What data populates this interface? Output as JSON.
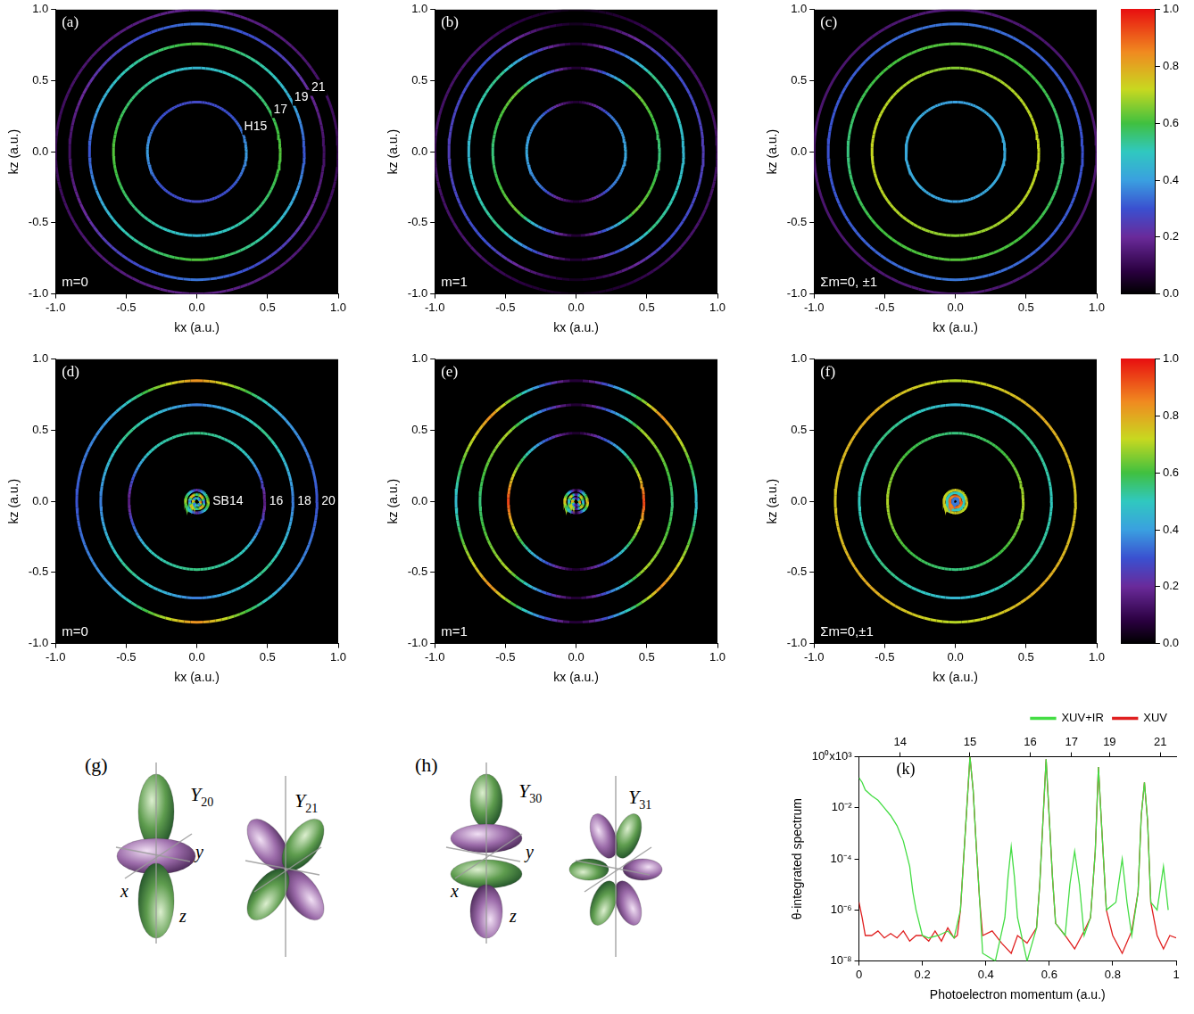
{
  "chart_data": [
    {
      "type": "ring_map",
      "panel": "(a)",
      "annotation": "m=0",
      "xlabel": "kx (a.u.)",
      "ylabel": "kz (a.u.)",
      "xlim": [
        -1,
        1
      ],
      "ylim": [
        -1,
        1
      ],
      "xticks": [
        {
          "value": -1,
          "label": "-1.0"
        },
        -0.5,
        {
          "value": 0,
          "label": "0.0"
        },
        0.5,
        {
          "value": 1,
          "label": "1.0"
        }
      ],
      "yticks": [
        {
          "value": -1,
          "label": "-1.0"
        },
        -0.5,
        {
          "value": 0,
          "label": "0.0"
        },
        0.5,
        {
          "value": 1,
          "label": "1.0"
        }
      ],
      "grid": false,
      "rings": [
        {
          "label": "H15",
          "radius": 0.35,
          "intensity": [
            0.4,
            0.3,
            0.28,
            0.3,
            0.4,
            0.3,
            0.28,
            0.3
          ]
        },
        {
          "label": "17",
          "radius": 0.59,
          "intensity": [
            0.62,
            0.55,
            0.45,
            0.55,
            0.62,
            0.55,
            0.45,
            0.55
          ]
        },
        {
          "label": "19",
          "radius": 0.76,
          "intensity": [
            0.3,
            0.5,
            0.62,
            0.5,
            0.3,
            0.5,
            0.62,
            0.5
          ]
        },
        {
          "label": "21",
          "radius": 0.9,
          "intensity": [
            0.12,
            0.25,
            0.35,
            0.25,
            0.12,
            0.25,
            0.35,
            0.25
          ]
        },
        {
          "radius": 1.0,
          "intensity": [
            0.1,
            0.15,
            0.18,
            0.15,
            0.1,
            0.15,
            0.18,
            0.15
          ]
        }
      ]
    },
    {
      "type": "ring_map",
      "panel": "(b)",
      "annotation": "m=1",
      "xlabel": "kx (a.u.)",
      "ylabel": "kz (a.u.)",
      "xlim": [
        -1,
        1
      ],
      "ylim": [
        -1,
        1
      ],
      "xticks": [
        {
          "value": -1,
          "label": "-1.0"
        },
        -0.5,
        {
          "value": 0,
          "label": "0.0"
        },
        0.5,
        {
          "value": 1,
          "label": "1.0"
        }
      ],
      "yticks": [
        {
          "value": -1,
          "label": "-1.0"
        },
        -0.5,
        {
          "value": 0,
          "label": "0.0"
        },
        0.5,
        {
          "value": 1,
          "label": "1.0"
        }
      ],
      "grid": false,
      "rings": [
        {
          "radius": 0.35,
          "intensity": [
            0.42,
            0.35,
            0.05,
            0.35,
            0.42,
            0.35,
            0.05,
            0.35
          ]
        },
        {
          "radius": 0.59,
          "intensity": [
            0.55,
            0.65,
            0.04,
            0.65,
            0.55,
            0.65,
            0.04,
            0.65
          ]
        },
        {
          "radius": 0.76,
          "intensity": [
            0.45,
            0.55,
            0.04,
            0.55,
            0.45,
            0.55,
            0.04,
            0.55
          ]
        },
        {
          "radius": 0.9,
          "intensity": [
            0.25,
            0.3,
            0.03,
            0.3,
            0.25,
            0.3,
            0.03,
            0.3
          ]
        },
        {
          "radius": 1.0,
          "intensity": [
            0.12,
            0.14,
            0.02,
            0.14,
            0.12,
            0.14,
            0.02,
            0.14
          ]
        }
      ]
    },
    {
      "type": "ring_map",
      "panel": "(c)",
      "annotation": "Σm=0, ±1",
      "xlabel": "kx (a.u.)",
      "ylabel": "kz (a.u.)",
      "xlim": [
        -1,
        1
      ],
      "ylim": [
        -1,
        1
      ],
      "xticks": [
        {
          "value": -1,
          "label": "-1.0"
        },
        -0.5,
        {
          "value": 0,
          "label": "0.0"
        },
        0.5,
        {
          "value": 1,
          "label": "1.0"
        }
      ],
      "yticks": [
        {
          "value": -1,
          "label": "-1.0"
        },
        -0.5,
        {
          "value": 0,
          "label": "0.0"
        },
        0.5,
        {
          "value": 1,
          "label": "1.0"
        }
      ],
      "grid": false,
      "rings": [
        {
          "radius": 0.35,
          "intensity": [
            0.42,
            0.42,
            0.4,
            0.42,
            0.42,
            0.42,
            0.4,
            0.42
          ]
        },
        {
          "radius": 0.59,
          "intensity": [
            0.72,
            0.7,
            0.66,
            0.7,
            0.72,
            0.7,
            0.66,
            0.7
          ]
        },
        {
          "radius": 0.76,
          "intensity": [
            0.55,
            0.6,
            0.62,
            0.6,
            0.55,
            0.6,
            0.62,
            0.6
          ]
        },
        {
          "radius": 0.9,
          "intensity": [
            0.3,
            0.32,
            0.35,
            0.32,
            0.3,
            0.32,
            0.35,
            0.32
          ]
        },
        {
          "radius": 1.0,
          "intensity": [
            0.14,
            0.14,
            0.15,
            0.14,
            0.14,
            0.14,
            0.15,
            0.14
          ]
        }
      ]
    },
    {
      "type": "ring_map",
      "panel": "(d)",
      "annotation": "m=0",
      "xlabel": "kx (a.u.)",
      "ylabel": "kz (a.u.)",
      "xlim": [
        -1,
        1
      ],
      "ylim": [
        -1,
        1
      ],
      "xticks": [
        {
          "value": -1,
          "label": "-1.0"
        },
        -0.5,
        {
          "value": 0,
          "label": "0.0"
        },
        0.5,
        {
          "value": 1,
          "label": "1.0"
        }
      ],
      "yticks": [
        {
          "value": -1,
          "label": "-1.0"
        },
        -0.5,
        {
          "value": 0,
          "label": "0.0"
        },
        0.5,
        {
          "value": 1,
          "label": "1.0"
        }
      ],
      "grid": false,
      "rings": [
        {
          "radius": 0.025,
          "intensity": [
            0.9,
            0.3,
            0.6,
            0.3,
            0.9,
            0.3,
            0.6,
            0.3
          ]
        },
        {
          "radius": 0.05,
          "intensity": [
            0.3,
            0.85,
            0.5,
            0.85,
            0.3,
            0.85,
            0.5,
            0.85
          ]
        },
        {
          "label": "SB14",
          "radius": 0.08,
          "intensity": [
            0.7,
            0.5,
            0.2,
            0.5,
            0.7,
            0.5,
            0.2,
            0.5
          ]
        },
        {
          "label": "16",
          "radius": 0.48,
          "intensity": [
            0.15,
            0.5,
            0.55,
            0.5,
            0.15,
            0.5,
            0.55,
            0.5
          ]
        },
        {
          "label": "18",
          "radius": 0.68,
          "intensity": [
            0.35,
            0.55,
            0.35,
            0.55,
            0.35,
            0.55,
            0.35,
            0.55
          ]
        },
        {
          "label": "20",
          "radius": 0.85,
          "intensity": [
            0.3,
            0.4,
            0.85,
            0.4,
            0.3,
            0.4,
            0.85,
            0.4
          ]
        }
      ]
    },
    {
      "type": "ring_map",
      "panel": "(e)",
      "annotation": "m=1",
      "xlabel": "kx (a.u.)",
      "ylabel": "kz (a.u.)",
      "xlim": [
        -1,
        1
      ],
      "ylim": [
        -1,
        1
      ],
      "xticks": [
        {
          "value": -1,
          "label": "-1.0"
        },
        -0.5,
        {
          "value": 0,
          "label": "0.0"
        },
        0.5,
        {
          "value": 1,
          "label": "1.0"
        }
      ],
      "yticks": [
        {
          "value": -1,
          "label": "-1.0"
        },
        -0.5,
        {
          "value": 0,
          "label": "0.0"
        },
        0.5,
        {
          "value": 1,
          "label": "1.0"
        }
      ],
      "grid": false,
      "rings": [
        {
          "radius": 0.025,
          "intensity": [
            0.9,
            0.4,
            0.1,
            0.4,
            0.9,
            0.4,
            0.1,
            0.4
          ]
        },
        {
          "radius": 0.05,
          "intensity": [
            0.4,
            0.8,
            0.1,
            0.8,
            0.4,
            0.8,
            0.1,
            0.8
          ]
        },
        {
          "radius": 0.08,
          "intensity": [
            0.8,
            0.5,
            0.05,
            0.5,
            0.8,
            0.5,
            0.05,
            0.5
          ]
        },
        {
          "radius": 0.48,
          "intensity": [
            0.95,
            0.5,
            0.04,
            0.5,
            0.95,
            0.5,
            0.04,
            0.5
          ]
        },
        {
          "radius": 0.68,
          "intensity": [
            0.55,
            0.7,
            0.04,
            0.7,
            0.55,
            0.7,
            0.04,
            0.7
          ]
        },
        {
          "radius": 0.85,
          "intensity": [
            0.45,
            0.85,
            0.04,
            0.85,
            0.45,
            0.85,
            0.04,
            0.85
          ]
        }
      ]
    },
    {
      "type": "ring_map",
      "panel": "(f)",
      "annotation": "Σm=0,±1",
      "xlabel": "kx (a.u.)",
      "ylabel": "kz (a.u.)",
      "xlim": [
        -1,
        1
      ],
      "ylim": [
        -1,
        1
      ],
      "xticks": [
        {
          "value": -1,
          "label": "-1.0"
        },
        -0.5,
        {
          "value": 0,
          "label": "0.0"
        },
        0.5,
        {
          "value": 1,
          "label": "1.0"
        }
      ],
      "yticks": [
        {
          "value": -1,
          "label": "-1.0"
        },
        -0.5,
        {
          "value": 0,
          "label": "0.0"
        },
        0.5,
        {
          "value": 1,
          "label": "1.0"
        }
      ],
      "grid": false,
      "rings": [
        {
          "radius": 0.02,
          "intensity": [
            0.35,
            0.35,
            0.35,
            0.35,
            0.35,
            0.35,
            0.35,
            0.35
          ]
        },
        {
          "radius": 0.04,
          "intensity": [
            0.9,
            0.85,
            0.9,
            0.85,
            0.9,
            0.85,
            0.9,
            0.85
          ]
        },
        {
          "radius": 0.06,
          "intensity": [
            0.5,
            0.5,
            0.5,
            0.5,
            0.5,
            0.5,
            0.5,
            0.5
          ]
        },
        {
          "radius": 0.08,
          "intensity": [
            0.75,
            0.7,
            0.75,
            0.7,
            0.75,
            0.7,
            0.75,
            0.7
          ]
        },
        {
          "radius": 0.48,
          "intensity": [
            0.7,
            0.6,
            0.55,
            0.6,
            0.7,
            0.6,
            0.55,
            0.6
          ]
        },
        {
          "radius": 0.68,
          "intensity": [
            0.5,
            0.55,
            0.45,
            0.55,
            0.5,
            0.55,
            0.45,
            0.55
          ]
        },
        {
          "radius": 0.85,
          "intensity": [
            0.75,
            0.8,
            0.7,
            0.8,
            0.75,
            0.8,
            0.7,
            0.8
          ]
        }
      ]
    },
    {
      "type": "colorbar",
      "ylim": [
        0,
        1
      ],
      "yticks": [
        {
          "value": 0,
          "label": "0.0"
        },
        0.2,
        0.4,
        0.6,
        0.8,
        {
          "value": 1,
          "label": "1.0"
        }
      ]
    },
    {
      "type": "colorbar",
      "ylim": [
        0,
        1
      ],
      "yticks": [
        {
          "value": 0,
          "label": "0.0"
        },
        0.2,
        0.4,
        0.6,
        0.8,
        {
          "value": 1,
          "label": "1.0"
        }
      ]
    },
    {
      "type": "line",
      "panel": "(k)",
      "xlabel": "Photoelectron momentum (a.u.)",
      "ylabel": "θ-integrated spectrum",
      "log": "y",
      "grid": false,
      "legend": "top",
      "xlim": [
        0,
        1
      ],
      "xticks": [
        0,
        0.2,
        0.4,
        0.6,
        0.8,
        1
      ],
      "x2lim": [
        0,
        1
      ],
      "x2ticks": [
        {
          "value": 0.13,
          "label": "14"
        },
        {
          "value": 0.35,
          "label": "15"
        },
        {
          "value": 0.54,
          "label": "16"
        },
        {
          "value": 0.67,
          "label": "17"
        },
        {
          "value": 0.79,
          "label": "19"
        },
        {
          "value": 0.95,
          "label": "21"
        }
      ],
      "ylim": [
        1e-08,
        1
      ],
      "yticks": [
        {
          "value": 1e-08,
          "label": "10⁻⁸"
        },
        {
          "value": 1e-06,
          "label": "10⁻⁶"
        },
        {
          "value": 0.0001,
          "label": "10⁻⁴"
        },
        {
          "value": 0.01,
          "label": "10⁻²"
        },
        {
          "value": 1,
          "label": "10⁰x10³"
        }
      ],
      "series": [
        {
          "name": "XUV+IR",
          "color": "#44dd44",
          "x": [
            0,
            0.01,
            0.02,
            0.04,
            0.06,
            0.08,
            0.1,
            0.12,
            0.14,
            0.16,
            0.17,
            0.18,
            0.2,
            0.22,
            0.25,
            0.28,
            0.3,
            0.32,
            0.33,
            0.34,
            0.35,
            0.36,
            0.37,
            0.38,
            0.39,
            0.43,
            0.46,
            0.47,
            0.48,
            0.49,
            0.5,
            0.53,
            0.56,
            0.57,
            0.58,
            0.59,
            0.6,
            0.61,
            0.62,
            0.65,
            0.665,
            0.68,
            0.695,
            0.71,
            0.73,
            0.745,
            0.755,
            0.765,
            0.78,
            0.81,
            0.83,
            0.845,
            0.86,
            0.88,
            0.89,
            0.9,
            0.91,
            0.92,
            0.94,
            0.96,
            0.975
          ],
          "values": [
            0.15,
            0.1,
            0.05,
            0.03,
            0.02,
            0.01,
            0.005,
            0.002,
            0.0005,
            5e-05,
            5e-06,
            1e-06,
            1e-07,
            8e-08,
            1e-07,
            1.5e-07,
            8e-08,
            1e-06,
            0.0001,
            0.01,
            1,
            0.05,
            0.0003,
            3e-06,
            2e-08,
            1e-08,
            5e-07,
            2e-05,
            0.0003,
            2e-05,
            5e-07,
            1e-08,
            2e-07,
            1e-05,
            0.003,
            0.8,
            0.004,
            2e-05,
            3e-07,
            1e-07,
            1e-05,
            0.0002,
            1e-05,
            1e-07,
            5e-07,
            0.0002,
            0.4,
            0.002,
            1e-06,
            2e-06,
            0.0001,
            2e-06,
            1e-07,
            5e-06,
            0.005,
            0.1,
            0.003,
            2e-06,
            1e-06,
            5e-05,
            1e-06
          ]
        },
        {
          "name": "XUV",
          "color": "#e02020",
          "x": [
            0,
            0.01,
            0.02,
            0.04,
            0.06,
            0.08,
            0.1,
            0.12,
            0.14,
            0.16,
            0.18,
            0.2,
            0.22,
            0.24,
            0.26,
            0.28,
            0.3,
            0.31,
            0.32,
            0.33,
            0.34,
            0.35,
            0.36,
            0.37,
            0.38,
            0.39,
            0.42,
            0.45,
            0.48,
            0.5,
            0.53,
            0.56,
            0.57,
            0.58,
            0.59,
            0.6,
            0.61,
            0.62,
            0.65,
            0.68,
            0.71,
            0.73,
            0.745,
            0.755,
            0.765,
            0.78,
            0.8,
            0.83,
            0.86,
            0.88,
            0.89,
            0.9,
            0.91,
            0.92,
            0.94,
            0.96,
            0.98,
            1
          ],
          "values": [
            2e-06,
            5e-07,
            1e-07,
            1e-07,
            1.5e-07,
            8e-08,
            1.2e-07,
            8e-08,
            1.5e-07,
            6e-08,
            1e-07,
            1e-07,
            6e-08,
            1.5e-07,
            6e-08,
            2e-07,
            8e-08,
            1e-07,
            1e-06,
            0.0001,
            0.01,
            1,
            0.05,
            0.0003,
            3e-06,
            1e-07,
            1.5e-07,
            5e-08,
            2e-08,
            1e-07,
            5e-08,
            2e-07,
            1e-05,
            0.003,
            0.8,
            0.004,
            2e-05,
            3e-07,
            1e-07,
            3e-08,
            1.5e-07,
            5e-07,
            0.0002,
            0.4,
            0.002,
            1e-06,
            1e-07,
            2e-08,
            1.5e-07,
            5e-06,
            0.005,
            0.1,
            0.003,
            2e-06,
            1e-07,
            3e-08,
            1e-07,
            8e-08
          ]
        }
      ]
    }
  ],
  "diagram": {
    "panels": [
      {
        "label": "(g)",
        "shapes": [
          {
            "symbol": "Y",
            "sub": "20",
            "axes": [
              "x",
              "y",
              "z"
            ]
          },
          {
            "symbol": "Y",
            "sub": "21"
          }
        ]
      },
      {
        "label": "(h)",
        "shapes": [
          {
            "symbol": "Y",
            "sub": "30",
            "axes": [
              "x",
              "y",
              "z"
            ]
          },
          {
            "symbol": "Y",
            "sub": "31"
          }
        ]
      }
    ]
  }
}
